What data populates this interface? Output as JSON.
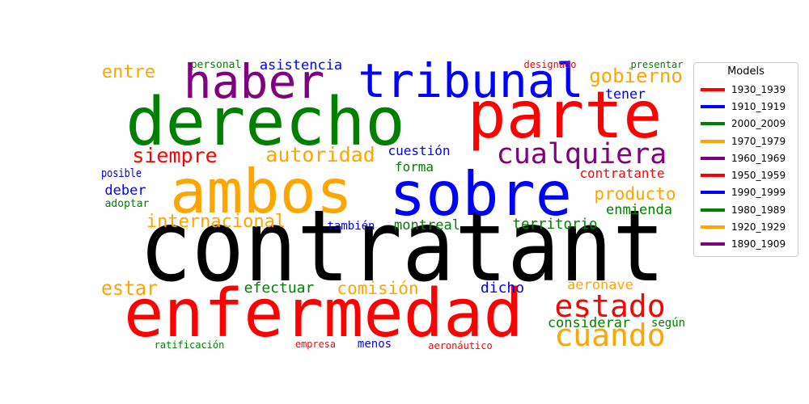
{
  "chart_data": {
    "type": "wordcloud",
    "legend": {
      "title": "Models",
      "placement": "right",
      "entries": [
        {
          "label": "1930_1939",
          "color": "#ff0000"
        },
        {
          "label": "1910_1919",
          "color": "#0000ff"
        },
        {
          "label": "2000_2009",
          "color": "#008000"
        },
        {
          "label": "1970_1979",
          "color": "#ffa500"
        },
        {
          "label": "1960_1969",
          "color": "#800080"
        },
        {
          "label": "1950_1959",
          "color": "#ff0000"
        },
        {
          "label": "1990_1999",
          "color": "#0000ff"
        },
        {
          "label": "1980_1989",
          "color": "#008000"
        },
        {
          "label": "1920_1929",
          "color": "#ffa500"
        },
        {
          "label": "1890_1909",
          "color": "#800080"
        }
      ]
    },
    "words": [
      {
        "text": "contratant",
        "color": "#000000"
      },
      {
        "text": "parte",
        "color": "#ff0000"
      },
      {
        "text": "derecho",
        "color": "#008000"
      },
      {
        "text": "sobre",
        "color": "#0000ff"
      },
      {
        "text": "ambos",
        "color": "#ffa500"
      },
      {
        "text": "enfermedad",
        "color": "#ff0000"
      },
      {
        "text": "tribunal",
        "color": "#0000ff"
      },
      {
        "text": "haber",
        "color": "#800080"
      },
      {
        "text": "cualquiera",
        "color": "#800080"
      },
      {
        "text": "estado",
        "color": "#ff0000"
      },
      {
        "text": "cuando",
        "color": "#ffa500"
      },
      {
        "text": "gobierno",
        "color": "#ffa500"
      },
      {
        "text": "siempre",
        "color": "#ff0000"
      },
      {
        "text": "autoridad",
        "color": "#ffa500"
      },
      {
        "text": "internacional",
        "color": "#ffa500"
      },
      {
        "text": "producto",
        "color": "#ffa500"
      },
      {
        "text": "estar",
        "color": "#ffa500"
      },
      {
        "text": "comisión",
        "color": "#ffa500"
      },
      {
        "text": "entre",
        "color": "#ffa500"
      },
      {
        "text": "asistencia",
        "color": "#0000ff"
      },
      {
        "text": "tener",
        "color": "#0000ff"
      },
      {
        "text": "cuestión",
        "color": "#0000ff"
      },
      {
        "text": "forma",
        "color": "#008000"
      },
      {
        "text": "contratante",
        "color": "#ff0000"
      },
      {
        "text": "enmienda",
        "color": "#008000"
      },
      {
        "text": "territorio",
        "color": "#008000"
      },
      {
        "text": "montreal",
        "color": "#008000"
      },
      {
        "text": "también",
        "color": "#0000ff"
      },
      {
        "text": "efectuar",
        "color": "#008000"
      },
      {
        "text": "dicho",
        "color": "#0000ff"
      },
      {
        "text": "aeronave",
        "color": "#ffa500"
      },
      {
        "text": "considerar",
        "color": "#008000"
      },
      {
        "text": "deber",
        "color": "#0000ff"
      },
      {
        "text": "posible",
        "color": "#0000ff"
      },
      {
        "text": "adoptar",
        "color": "#008000"
      },
      {
        "text": "personal",
        "color": "#008000"
      },
      {
        "text": "designado",
        "color": "#ff0000"
      },
      {
        "text": "presentar",
        "color": "#008000"
      },
      {
        "text": "según",
        "color": "#008000"
      },
      {
        "text": "ratificación",
        "color": "#008000"
      },
      {
        "text": "empresa",
        "color": "#ff0000"
      },
      {
        "text": "menos",
        "color": "#0000ff"
      },
      {
        "text": "aeronáutico",
        "color": "#ff0000"
      }
    ]
  }
}
